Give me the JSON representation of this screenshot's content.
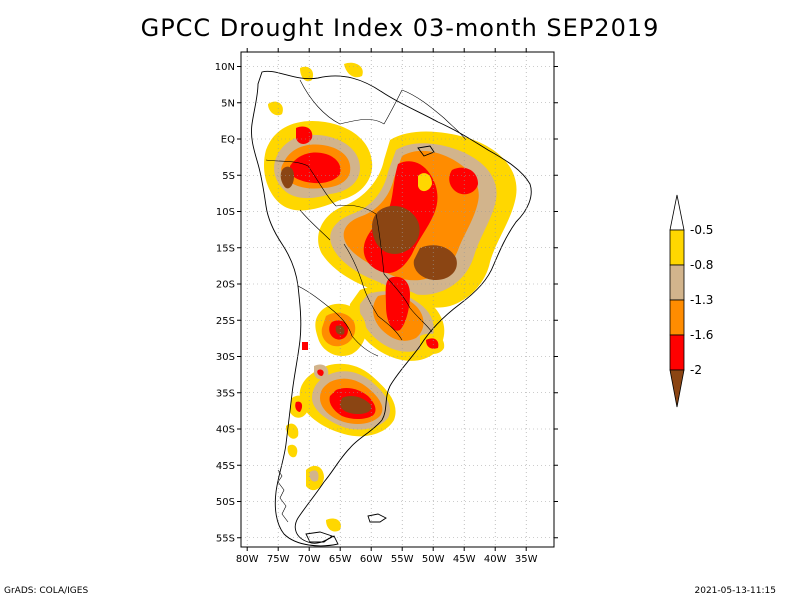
{
  "title": "GPCC Drought Index 03-month SEP2019",
  "map": {
    "region": "South America",
    "lon_range": [
      -81,
      -31
    ],
    "lat_range": [
      -56,
      12
    ],
    "grid": true,
    "y_ticks": [
      "10N",
      "5N",
      "EQ",
      "5S",
      "10S",
      "15S",
      "20S",
      "25S",
      "30S",
      "35S",
      "40S",
      "45S",
      "50S",
      "55S"
    ],
    "x_ticks": [
      "80W",
      "75W",
      "70W",
      "65W",
      "60W",
      "55W",
      "50W",
      "45W",
      "40W",
      "35W"
    ]
  },
  "legend": {
    "labels": [
      "-0.5",
      "-0.8",
      "-1.3",
      "-1.6",
      "-2"
    ],
    "colors": {
      "above": "#ffffff",
      "c1": "#ffd700",
      "c2": "#d2b48c",
      "c3": "#ff8c00",
      "c4": "#ff0000",
      "below": "#8b4513"
    }
  },
  "footer": {
    "left": "GrADS: COLA/IGES",
    "right": "2021-05-13-11:15"
  }
}
